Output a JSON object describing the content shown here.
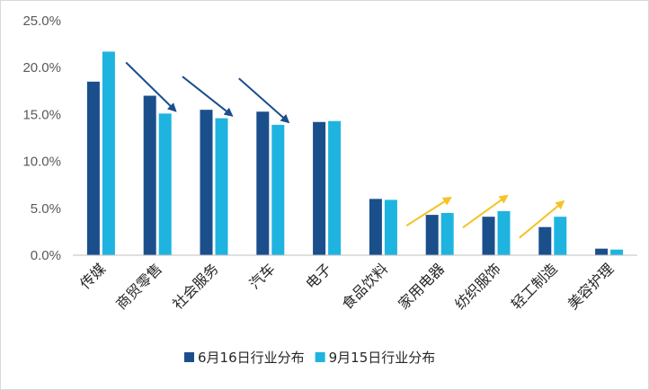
{
  "chart_data": {
    "type": "bar",
    "categories": [
      "传媒",
      "商贸零售",
      "社会服务",
      "汽车",
      "电子",
      "食品饮料",
      "家用电器",
      "纺织服饰",
      "轻工制造",
      "美容护理"
    ],
    "series": [
      {
        "name": "6月16日行业分布",
        "color": "#1a4f8b",
        "values": [
          18.5,
          17.0,
          15.5,
          15.3,
          14.2,
          6.0,
          4.3,
          4.1,
          3.0,
          0.7
        ]
      },
      {
        "name": "9月15日行业分布",
        "color": "#1fb4e0",
        "values": [
          21.7,
          15.1,
          14.6,
          13.9,
          14.3,
          5.9,
          4.5,
          4.7,
          4.1,
          0.6
        ]
      }
    ],
    "y_ticks": [
      "0.0%",
      "5.0%",
      "10.0%",
      "15.0%",
      "20.0%",
      "25.0%"
    ],
    "ylim": [
      0,
      25
    ],
    "grid": false,
    "legend_position": "bottom",
    "annotations": [
      {
        "type": "arrow",
        "direction": "down",
        "color": "#1a4f8b",
        "category": "商贸零售"
      },
      {
        "type": "arrow",
        "direction": "down",
        "color": "#1a4f8b",
        "category": "社会服务"
      },
      {
        "type": "arrow",
        "direction": "down",
        "color": "#1a4f8b",
        "category": "汽车"
      },
      {
        "type": "arrow",
        "direction": "up",
        "color": "#f5c325",
        "category": "家用电器"
      },
      {
        "type": "arrow",
        "direction": "up",
        "color": "#f5c325",
        "category": "纺织服饰"
      },
      {
        "type": "arrow",
        "direction": "up",
        "color": "#f5c325",
        "category": "轻工制造"
      }
    ]
  }
}
